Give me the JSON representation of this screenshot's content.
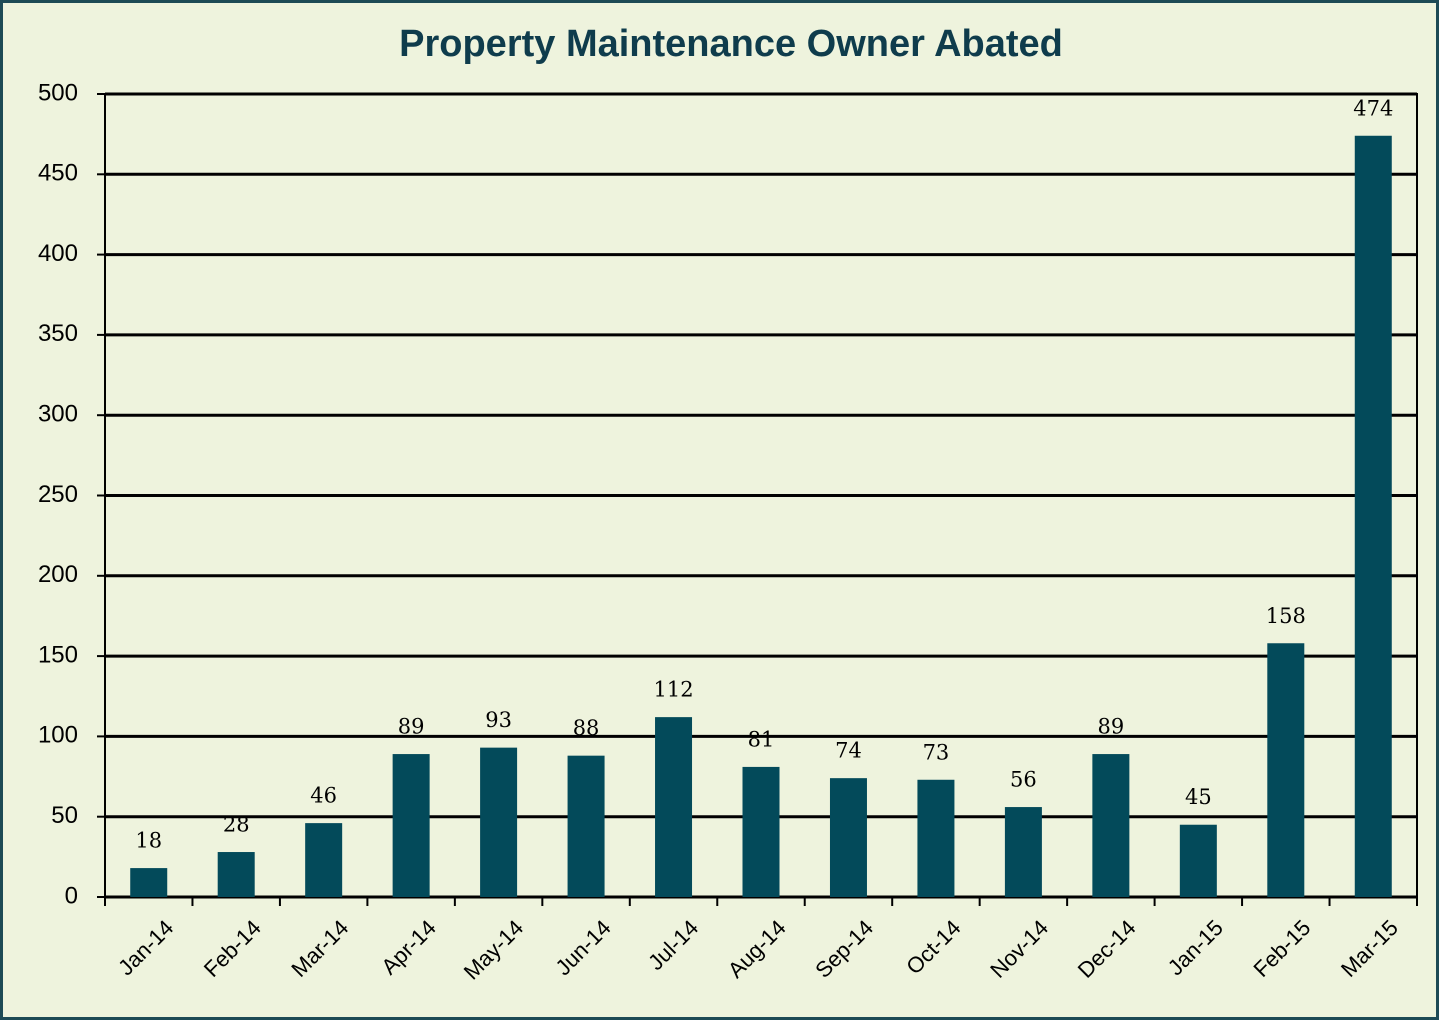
{
  "chart_data": {
    "type": "bar",
    "title": "Property Maintenance Owner Abated",
    "categories": [
      "Jan-14",
      "Feb-14",
      "Mar-14",
      "Apr-14",
      "May-14",
      "Jun-14",
      "Jul-14",
      "Aug-14",
      "Sep-14",
      "Oct-14",
      "Nov-14",
      "Dec-14",
      "Jan-15",
      "Feb-15",
      "Mar-15"
    ],
    "values": [
      18,
      28,
      46,
      89,
      93,
      88,
      112,
      81,
      74,
      73,
      56,
      89,
      45,
      158,
      474
    ],
    "color": "#034a5a",
    "ylim": [
      0,
      500
    ],
    "yticks": [
      0,
      50,
      100,
      150,
      200,
      250,
      300,
      350,
      400,
      450,
      500
    ],
    "grid": true
  }
}
